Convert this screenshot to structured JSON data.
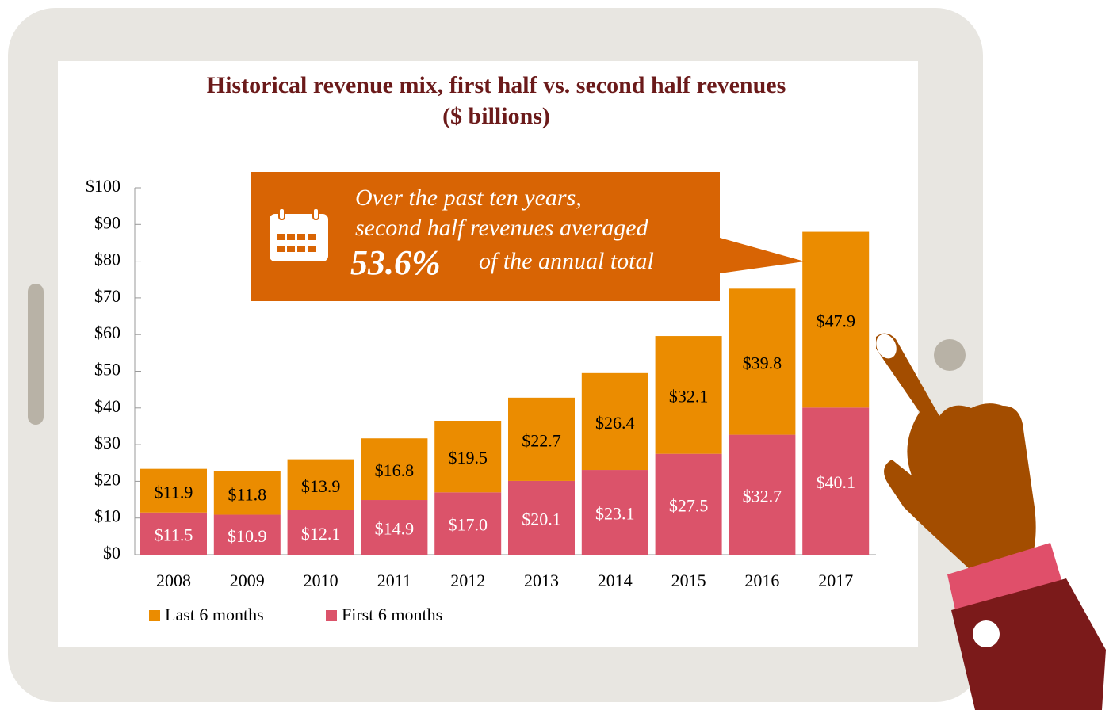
{
  "chart_data": {
    "type": "stacked-bar",
    "title": "Historical revenue mix, first half vs. second half revenues",
    "subtitle": "($ billions)",
    "categories": [
      "2008",
      "2009",
      "2010",
      "2011",
      "2012",
      "2013",
      "2014",
      "2015",
      "2016",
      "2017"
    ],
    "series": [
      {
        "name": "First 6 months",
        "color": "#db536a",
        "values": [
          11.5,
          10.9,
          12.1,
          14.9,
          17.0,
          20.1,
          23.1,
          27.5,
          32.7,
          40.1
        ],
        "value_labels": [
          "$11.5",
          "$10.9",
          "$12.1",
          "$14.9",
          "$17.0",
          "$20.1",
          "$23.1",
          "$27.5",
          "$32.7",
          "$40.1"
        ]
      },
      {
        "name": "Last 6 months",
        "color": "#eb8c00",
        "values": [
          11.9,
          11.8,
          13.9,
          16.8,
          19.5,
          22.7,
          26.4,
          32.1,
          39.8,
          47.9
        ],
        "value_labels": [
          "$11.9",
          "$11.8",
          "$13.9",
          "$16.8",
          "$19.5",
          "$22.7",
          "$26.4",
          "$32.1",
          "$39.8",
          "$47.9"
        ]
      }
    ],
    "ylim": [
      0,
      100
    ],
    "yticks": [
      {
        "value": 0,
        "label": "$0"
      },
      {
        "value": 10,
        "label": "$10"
      },
      {
        "value": 20,
        "label": "$20"
      },
      {
        "value": 30,
        "label": "$30"
      },
      {
        "value": 40,
        "label": "$40"
      },
      {
        "value": 50,
        "label": "$50"
      },
      {
        "value": 60,
        "label": "$60"
      },
      {
        "value": 70,
        "label": "$70"
      },
      {
        "value": 80,
        "label": "$80"
      },
      {
        "value": 90,
        "label": "$90"
      },
      {
        "value": 100,
        "label": "$100"
      }
    ],
    "grid": false,
    "legend": "bottom-left",
    "annotation": {
      "lines": [
        "Over the past ten years,",
        "second half revenues averaged"
      ],
      "highlight": "53.6%",
      "rest": "of the annual total"
    }
  }
}
